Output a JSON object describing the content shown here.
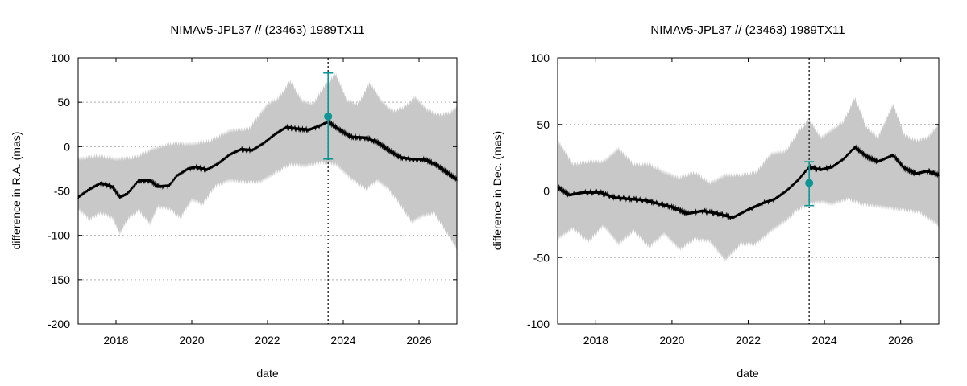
{
  "chart_data": [
    {
      "type": "line",
      "title": "NIMAv5-JPL37 // (23463) 1989TX11",
      "xlabel": "date",
      "ylabel": "difference in R.A. (mas)",
      "xlim": [
        2017.0,
        2027.0
      ],
      "ylim": [
        -200,
        100
      ],
      "xticks": [
        2018,
        2020,
        2022,
        2024,
        2026
      ],
      "xtick_labels": [
        "2018",
        "2020",
        "2022",
        "2024",
        "2026"
      ],
      "yticks": [
        100,
        50,
        0,
        -50,
        -100,
        -150,
        -200
      ],
      "ytick_labels": [
        "100",
        "50",
        "0",
        "-50",
        "-100",
        "-150",
        "-200"
      ],
      "grid": "y-dotted",
      "vline_x": 2023.6,
      "colors": {
        "line": "#000000",
        "band": "#c8c8c8",
        "obs": "#0e9595"
      },
      "series": [
        {
          "name": "difference",
          "x": [
            2017.0,
            2017.3,
            2017.6,
            2017.9,
            2018.1,
            2018.3,
            2018.6,
            2018.9,
            2019.1,
            2019.4,
            2019.6,
            2019.9,
            2020.1,
            2020.4,
            2020.7,
            2021.0,
            2021.3,
            2021.6,
            2021.9,
            2022.2,
            2022.5,
            2022.8,
            2023.1,
            2023.4,
            2023.6,
            2023.9,
            2024.2,
            2024.6,
            2024.9,
            2025.2,
            2025.5,
            2025.8,
            2026.1,
            2026.4,
            2026.7,
            2027.0
          ],
          "y": [
            -57,
            -48,
            -41,
            -45,
            -57,
            -53,
            -38,
            -38,
            -45,
            -44,
            -33,
            -25,
            -23,
            -26,
            -19,
            -9,
            -3,
            -4,
            4,
            14,
            22,
            20,
            19,
            24,
            28,
            19,
            11,
            10,
            5,
            -4,
            -12,
            -14,
            -14,
            -19,
            -28,
            -37
          ]
        },
        {
          "name": "uncertainty upper",
          "x": [
            2017.0,
            2017.5,
            2018.0,
            2018.5,
            2019.0,
            2019.5,
            2020.0,
            2020.5,
            2021.0,
            2021.5,
            2022.0,
            2022.3,
            2022.6,
            2022.9,
            2023.2,
            2023.5,
            2023.8,
            2024.1,
            2024.4,
            2024.7,
            2025.0,
            2025.3,
            2025.6,
            2025.9,
            2026.2,
            2026.5,
            2026.8,
            2027.0
          ],
          "y": [
            -14,
            -10,
            -14,
            -12,
            -2,
            4,
            3,
            7,
            18,
            20,
            48,
            55,
            74,
            52,
            48,
            68,
            82,
            52,
            48,
            72,
            52,
            40,
            44,
            56,
            42,
            36,
            38,
            44
          ]
        },
        {
          "name": "uncertainty lower",
          "x": [
            2017.0,
            2017.3,
            2017.6,
            2017.9,
            2018.1,
            2018.3,
            2018.6,
            2018.9,
            2019.1,
            2019.4,
            2019.7,
            2020.0,
            2020.3,
            2020.6,
            2021.0,
            2021.4,
            2021.8,
            2022.2,
            2022.6,
            2023.0,
            2023.4,
            2023.8,
            2024.2,
            2024.6,
            2024.9,
            2025.2,
            2025.5,
            2025.8,
            2026.1,
            2026.4,
            2026.7,
            2027.0
          ],
          "y": [
            -70,
            -82,
            -75,
            -80,
            -98,
            -82,
            -72,
            -87,
            -68,
            -70,
            -80,
            -60,
            -65,
            -45,
            -38,
            -40,
            -40,
            -30,
            -20,
            -22,
            -18,
            -20,
            -36,
            -48,
            -38,
            -48,
            -65,
            -85,
            -78,
            -75,
            -95,
            -115
          ]
        }
      ],
      "observation": {
        "x": 2023.6,
        "y": 34,
        "err_low": -14,
        "err_high": 83
      }
    },
    {
      "type": "line",
      "title": "NIMAv5-JPL37 // (23463) 1989TX11",
      "xlabel": "date",
      "ylabel": "difference in Dec. (mas)",
      "xlim": [
        2017.0,
        2027.0
      ],
      "ylim": [
        -100,
        100
      ],
      "xticks": [
        2018,
        2020,
        2022,
        2024,
        2026
      ],
      "xtick_labels": [
        "2018",
        "2020",
        "2022",
        "2024",
        "2026"
      ],
      "yticks": [
        100,
        50,
        0,
        -50,
        -100
      ],
      "ytick_labels": [
        "100",
        "50",
        "0",
        "-50",
        "-100"
      ],
      "grid": "y-dotted",
      "vline_x": 2023.6,
      "colors": {
        "line": "#000000",
        "band": "#c8c8c8",
        "obs": "#0e9595"
      },
      "series": [
        {
          "name": "difference",
          "x": [
            2017.0,
            2017.3,
            2017.7,
            2018.1,
            2018.5,
            2018.9,
            2019.3,
            2019.7,
            2020.0,
            2020.4,
            2020.8,
            2021.2,
            2021.6,
            2022.0,
            2022.4,
            2022.7,
            2023.0,
            2023.3,
            2023.6,
            2023.9,
            2024.2,
            2024.5,
            2024.8,
            2025.1,
            2025.4,
            2025.8,
            2026.1,
            2026.4,
            2026.7,
            2027.0
          ],
          "y": [
            3,
            -3,
            -1,
            -1,
            -5,
            -6,
            -7,
            -10,
            -12,
            -17,
            -15,
            -17,
            -20,
            -14,
            -9,
            -6,
            0,
            8,
            18,
            16,
            18,
            24,
            33,
            26,
            22,
            27,
            17,
            13,
            15,
            12
          ]
        },
        {
          "name": "uncertainty upper",
          "x": [
            2017.0,
            2017.4,
            2017.8,
            2018.2,
            2018.6,
            2019.0,
            2019.4,
            2019.8,
            2020.2,
            2020.6,
            2021.0,
            2021.4,
            2021.8,
            2022.2,
            2022.6,
            2023.0,
            2023.3,
            2023.6,
            2023.9,
            2024.2,
            2024.5,
            2024.8,
            2025.1,
            2025.4,
            2025.8,
            2026.1,
            2026.4,
            2026.7,
            2027.0
          ],
          "y": [
            38,
            20,
            22,
            22,
            32,
            20,
            20,
            14,
            10,
            14,
            6,
            12,
            12,
            14,
            28,
            30,
            44,
            54,
            40,
            46,
            52,
            70,
            48,
            40,
            65,
            42,
            38,
            40,
            50
          ]
        },
        {
          "name": "uncertainty lower",
          "x": [
            2017.0,
            2017.4,
            2017.8,
            2018.2,
            2018.6,
            2019.0,
            2019.4,
            2019.8,
            2020.2,
            2020.6,
            2021.0,
            2021.4,
            2021.8,
            2022.2,
            2022.6,
            2023.0,
            2023.3,
            2023.6,
            2023.9,
            2024.2,
            2024.6,
            2025.0,
            2025.5,
            2026.0,
            2026.5,
            2027.0
          ],
          "y": [
            -36,
            -28,
            -38,
            -26,
            -40,
            -30,
            -42,
            -32,
            -44,
            -36,
            -38,
            -52,
            -40,
            -40,
            -30,
            -22,
            -14,
            -10,
            -8,
            -10,
            -6,
            -10,
            -12,
            -14,
            -16,
            -26
          ]
        }
      ],
      "observation": {
        "x": 2023.6,
        "y": 6,
        "err_low": -11,
        "err_high": 22
      }
    }
  ]
}
